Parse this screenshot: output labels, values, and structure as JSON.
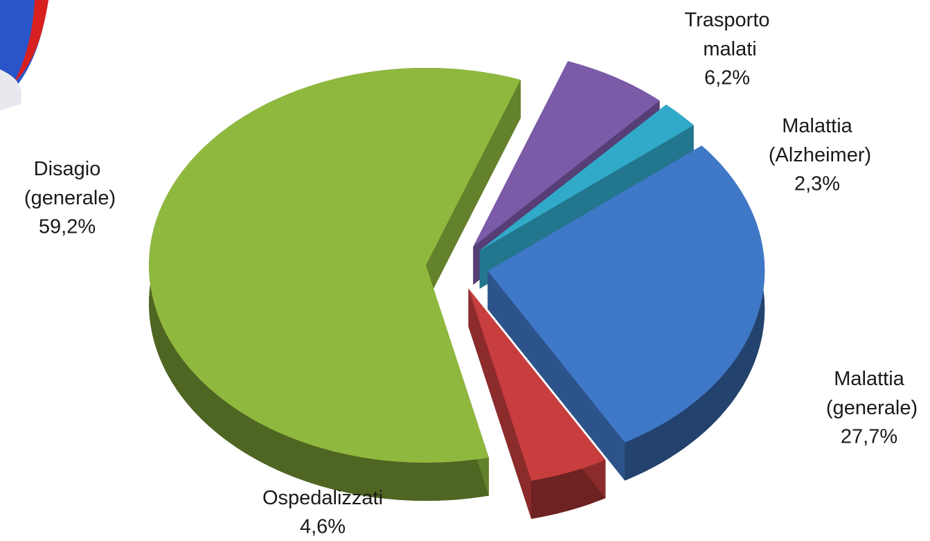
{
  "chart_data": {
    "type": "pie",
    "categories": [
      "Trasporto malati",
      "Malattia (Alzheimer)",
      "Malattia (generale)",
      "Ospedalizzati",
      "Disagio (generale)"
    ],
    "values": [
      6.2,
      2.3,
      27.7,
      4.6,
      59.2
    ],
    "value_labels": [
      "6,2%",
      "2,3%",
      "27,7%",
      "4,6%",
      "59,2%"
    ],
    "colors": [
      "#7b5aa8",
      "#31a9c9",
      "#3f78c6",
      "#c83d3d",
      "#8fb83e"
    ]
  }
}
